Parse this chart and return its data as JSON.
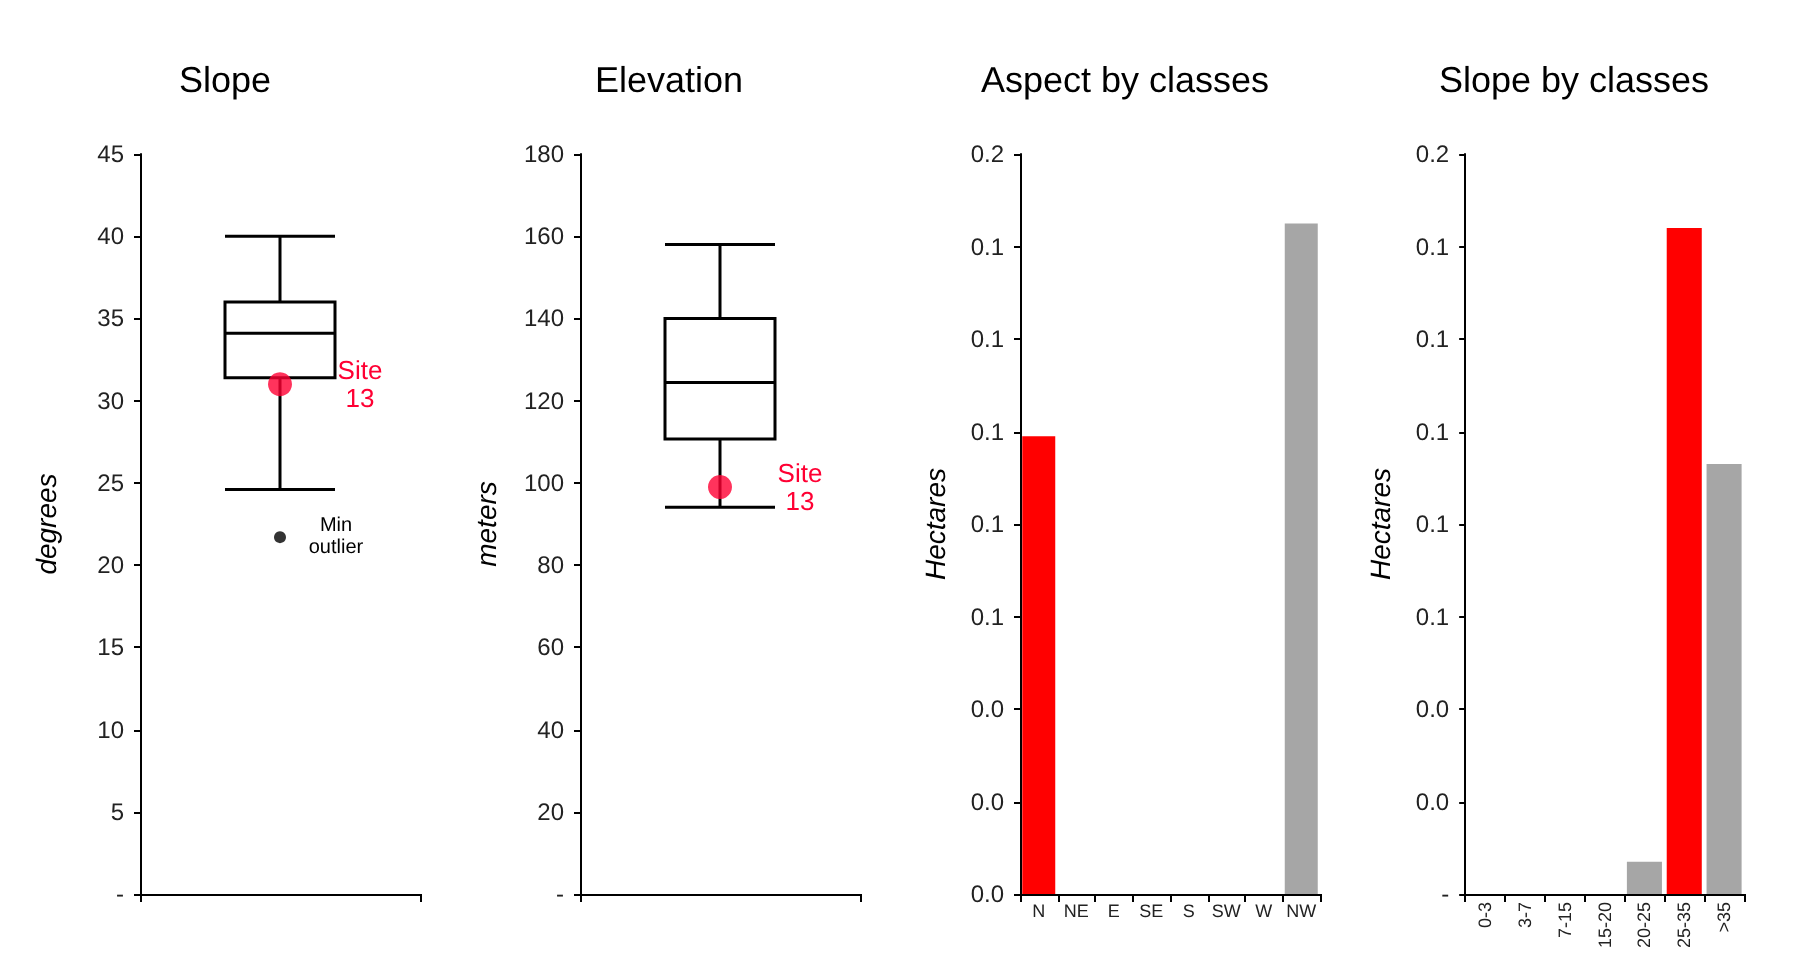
{
  "chart_data": [
    {
      "type": "box",
      "title": "Slope",
      "ylabel": "degrees",
      "categories": [
        null
      ],
      "series": [
        {
          "type": "box",
          "color": "#000000",
          "boxes": [
            {
              "low": 24.6,
              "q1": 31.4,
              "median": 34.1,
              "q3": 36,
              "high": 40,
              "outliers": [
                21.7
              ]
            }
          ]
        },
        {
          "type": "scatter",
          "color": "#ff0033",
          "values": [
            31
          ]
        }
      ],
      "ylim": [
        0,
        45
      ],
      "yticks": [
        {
          "value": 0,
          "label": "-"
        },
        5,
        10,
        15,
        20,
        25,
        30,
        35,
        40,
        45
      ],
      "annotations": [
        "Site 13",
        "Min outlier"
      ]
    },
    {
      "type": "box",
      "title": "Elevation",
      "ylabel": "meters",
      "categories": [
        null
      ],
      "series": [
        {
          "type": "box",
          "color": "#000000",
          "boxes": [
            {
              "low": 94.1,
              "q1": 110.7,
              "median": 124.4,
              "q3": 140,
              "high": 158
            }
          ]
        },
        {
          "type": "scatter",
          "color": "#ff0033",
          "values": [
            99
          ]
        }
      ],
      "ylim": [
        0,
        180
      ],
      "yticks": [
        {
          "value": 0,
          "label": "-"
        },
        20,
        40,
        60,
        80,
        100,
        120,
        140,
        160,
        180
      ],
      "annotations": [
        "Site 13"
      ]
    },
    {
      "type": "bar",
      "title": "Aspect by classes",
      "ylabel": "Hectares",
      "categories": [
        "N",
        "NE",
        "E",
        "SE",
        "S",
        "SW",
        "W",
        "NW"
      ],
      "values": [
        0.099,
        0,
        0,
        0,
        0,
        0,
        0,
        0.145
      ],
      "colors": [
        "#ff0000",
        "#a6a6a6",
        "#a6a6a6",
        "#a6a6a6",
        "#a6a6a6",
        "#a6a6a6",
        "#a6a6a6",
        "#a6a6a6"
      ],
      "ylim": [
        0,
        0.16
      ],
      "yticks": [
        {
          "value": 0,
          "label": "0.0"
        },
        {
          "value": 0.02,
          "label": "0.0"
        },
        {
          "value": 0.04,
          "label": "0.0"
        },
        {
          "value": 0.06,
          "label": "0.1"
        },
        {
          "value": 0.08,
          "label": "0.1"
        },
        {
          "value": 0.1,
          "label": "0.1"
        },
        {
          "value": 0.12,
          "label": "0.1"
        },
        {
          "value": 0.14,
          "label": "0.1"
        },
        {
          "value": 0.16,
          "label": "0.2"
        }
      ]
    },
    {
      "type": "bar",
      "title": "Slope by classes",
      "ylabel": "Hectares",
      "categories": [
        "0-3",
        "3-7",
        "7-15",
        "15-20",
        "20-25",
        "25-35",
        ">35"
      ],
      "values": [
        0,
        0,
        0,
        0,
        0.007,
        0.144,
        0.093
      ],
      "colors": [
        "#a6a6a6",
        "#a6a6a6",
        "#a6a6a6",
        "#a6a6a6",
        "#a6a6a6",
        "#ff0000",
        "#a6a6a6"
      ],
      "ylim": [
        0,
        0.16
      ],
      "yticks": [
        {
          "value": 0,
          "label": "-"
        },
        {
          "value": 0.02,
          "label": "0.0"
        },
        {
          "value": 0.04,
          "label": "0.0"
        },
        {
          "value": 0.06,
          "label": "0.1"
        },
        {
          "value": 0.08,
          "label": "0.1"
        },
        {
          "value": 0.1,
          "label": "0.1"
        },
        {
          "value": 0.12,
          "label": "0.1"
        },
        {
          "value": 0.14,
          "label": "0.1"
        },
        {
          "value": 0.16,
          "label": "0.2"
        }
      ]
    }
  ]
}
